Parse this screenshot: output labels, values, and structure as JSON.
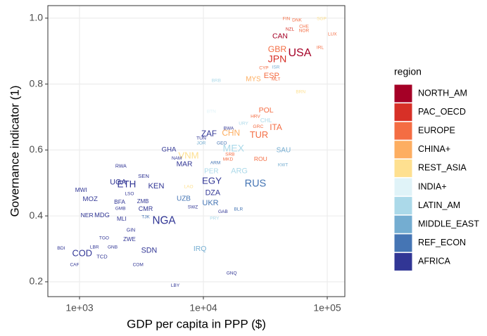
{
  "chart_data": {
    "type": "text-scatter",
    "x_label": "GDP per capita in PPP ($)",
    "y_label": "Governance indicator (1)",
    "legend_title": "region",
    "log_x": true,
    "grid": true,
    "legend_position": "right",
    "xlim": [
      555,
      138700
    ],
    "ylim": [
      0.155,
      1.038
    ],
    "xticks": [
      {
        "value": 1000,
        "label": "1e+03"
      },
      {
        "value": 10000,
        "label": "1e+04"
      },
      {
        "value": 100000,
        "label": "1e+05"
      }
    ],
    "yticks": [
      0.2,
      0.4,
      0.6,
      0.8,
      {
        "value": 1,
        "label": "1.0"
      }
    ],
    "series": [
      {
        "name": "NORTH_AM",
        "color": "#a50026",
        "labels": [
          "CAN",
          "USA"
        ],
        "x": [
          41600,
          60000
        ],
        "values": [
          0.945,
          0.893
        ],
        "sizes": [
          36,
          325
        ]
      },
      {
        "name": "PAC_OECD",
        "color": "#d73027",
        "labels": [
          "JPN",
          "NZL"
        ],
        "x": [
          39500,
          50000
        ],
        "values": [
          0.874,
          0.966
        ],
        "sizes": [
          127,
          4.7
        ]
      },
      {
        "name": "EUROPE",
        "color": "#f46d43",
        "labels": [
          "FIN",
          "DNK",
          "CHE",
          "NOR",
          "LUX",
          "IRL",
          "GBR",
          "ESP",
          "POL",
          "ITA",
          "TUR",
          "HRV",
          "GRC",
          "ROU",
          "SRB",
          "MKD",
          "CYP",
          "MLT"
        ],
        "x": [
          46800,
          57000,
          64900,
          64900,
          110000,
          87700,
          39500,
          35500,
          32100,
          38500,
          28100,
          26300,
          27700,
          29000,
          16400,
          15800,
          30800,
          38500
        ],
        "values": [
          0.998,
          0.994,
          0.974,
          0.962,
          0.951,
          0.91,
          0.904,
          0.825,
          0.72,
          0.667,
          0.644,
          0.701,
          0.671,
          0.571,
          0.586,
          0.571,
          0.849,
          0.814
        ],
        "sizes": [
          5.5,
          5.7,
          8.4,
          5.3,
          0.6,
          4.8,
          66,
          46,
          38,
          60,
          80,
          4.1,
          10.7,
          19.6,
          7,
          2.1,
          1.2,
          0.4
        ]
      },
      {
        "name": "CHINA+",
        "color": "#fdae61",
        "labels": [
          "CHN",
          "MYS"
        ],
        "x": [
          16700,
          25300
        ],
        "values": [
          0.65,
          0.814
        ],
        "sizes": [
          60,
          31
        ]
      },
      {
        "name": "REST_ASIA",
        "color": "#fee090",
        "labels": [
          "SGP",
          "BRN",
          "VNM",
          "LAO"
        ],
        "x": [
          90000,
          61000,
          7600,
          7600
        ],
        "values": [
          0.998,
          0.776,
          0.582,
          0.488
        ],
        "sizes": [
          5.6,
          0.4,
          94,
          7
        ]
      },
      {
        "name": "INDIA+",
        "color": "#e0f3f8",
        "labels": [
          "BTN"
        ],
        "x": [
          11600
        ],
        "values": [
          0.716
        ],
        "sizes": [
          0.8
        ]
      },
      {
        "name": "LATIN_AM",
        "color": "#abd9e9",
        "labels": [
          "MEX",
          "ARG",
          "PER",
          "CHL",
          "URY",
          "BRB",
          "PRY"
        ],
        "x": [
          17500,
          19500,
          11600,
          32100,
          21100,
          12700,
          12300
        ],
        "values": [
          0.603,
          0.535,
          0.535,
          0.689,
          0.68,
          0.81,
          0.392
        ],
        "sizes": [
          125,
          44,
          31,
          18,
          3.4,
          0.3,
          6.7
        ]
      },
      {
        "name": "MIDDLE_EAST",
        "color": "#74add1",
        "labels": [
          "SAU",
          "IRQ",
          "ISR",
          "JOR",
          "KWT"
        ],
        "x": [
          44400,
          9380,
          38500,
          9610,
          43900
        ],
        "values": [
          0.599,
          0.3,
          0.851,
          0.62,
          0.554
        ],
        "sizes": [
          32,
          37,
          8.5,
          9.5,
          4
        ]
      },
      {
        "name": "REF_ECON",
        "color": "#4575b4",
        "labels": [
          "RUS",
          "UKR",
          "UZB",
          "GEO",
          "BLR",
          "TJK",
          "ARM"
        ],
        "x": [
          26300,
          11400,
          6930,
          14100,
          19200,
          3420,
          12500
        ],
        "values": [
          0.497,
          0.439,
          0.452,
          0.62,
          0.42,
          0.396,
          0.561
        ],
        "sizes": [
          145,
          45,
          32,
          3.7,
          9.5,
          9,
          3
        ]
      },
      {
        "name": "AFRICA",
        "color": "#313695",
        "labels": [
          "ZAF",
          "GHA",
          "MAR",
          "EGY",
          "DZA",
          "UGA",
          "ETH",
          "KEN",
          "MOZ",
          "MDG",
          "CMR",
          "NGA",
          "COD",
          "SDN",
          "TUN",
          "NAM",
          "RWA",
          "SEN",
          "MWI",
          "LSO",
          "BFA",
          "GMB",
          "MLI",
          "NER",
          "GIN",
          "ZWE",
          "TGO",
          "LBR",
          "GNB",
          "TCD",
          "BDI",
          "CAF",
          "COM",
          "GNQ",
          "LBY",
          "GAB",
          "BWA",
          "SWZ",
          "ZMB"
        ],
        "x": [
          11100,
          5270,
          7030,
          11700,
          11900,
          2050,
          2400,
          4160,
          1220,
          1520,
          3420,
          4810,
          1050,
          3650,
          9610,
          6090,
          2160,
          3290,
          1030,
          2530,
          2110,
          2140,
          2190,
          1150,
          2600,
          2530,
          1580,
          1320,
          1850,
          1520,
          711,
          912,
          2970,
          16900,
          5930,
          14400,
          16000,
          8220,
          3250
        ],
        "values": [
          0.648,
          0.601,
          0.556,
          0.505,
          0.469,
          0.501,
          0.494,
          0.49,
          0.45,
          0.401,
          0.42,
          0.384,
          0.285,
          0.294,
          0.635,
          0.575,
          0.55,
          0.52,
          0.477,
          0.467,
          0.441,
          0.422,
          0.39,
          0.401,
          0.356,
          0.328,
          0.332,
          0.305,
          0.305,
          0.275,
          0.302,
          0.251,
          0.251,
          0.226,
          0.189,
          0.413,
          0.665,
          0.426,
          0.443
        ],
        "sizes": [
          55,
          28,
          35,
          95,
          40,
          40,
          100,
          48,
          28,
          25,
          23,
          185,
          80,
          40,
          11,
          2.5,
          12,
          15,
          18,
          2,
          19,
          2,
          18,
          20,
          12,
          16,
          7.5,
          4.6,
          1.8,
          14,
          11,
          4.6,
          0.8,
          1.2,
          6.3,
          2,
          2.2,
          1.3,
          16
        ]
      }
    ]
  }
}
